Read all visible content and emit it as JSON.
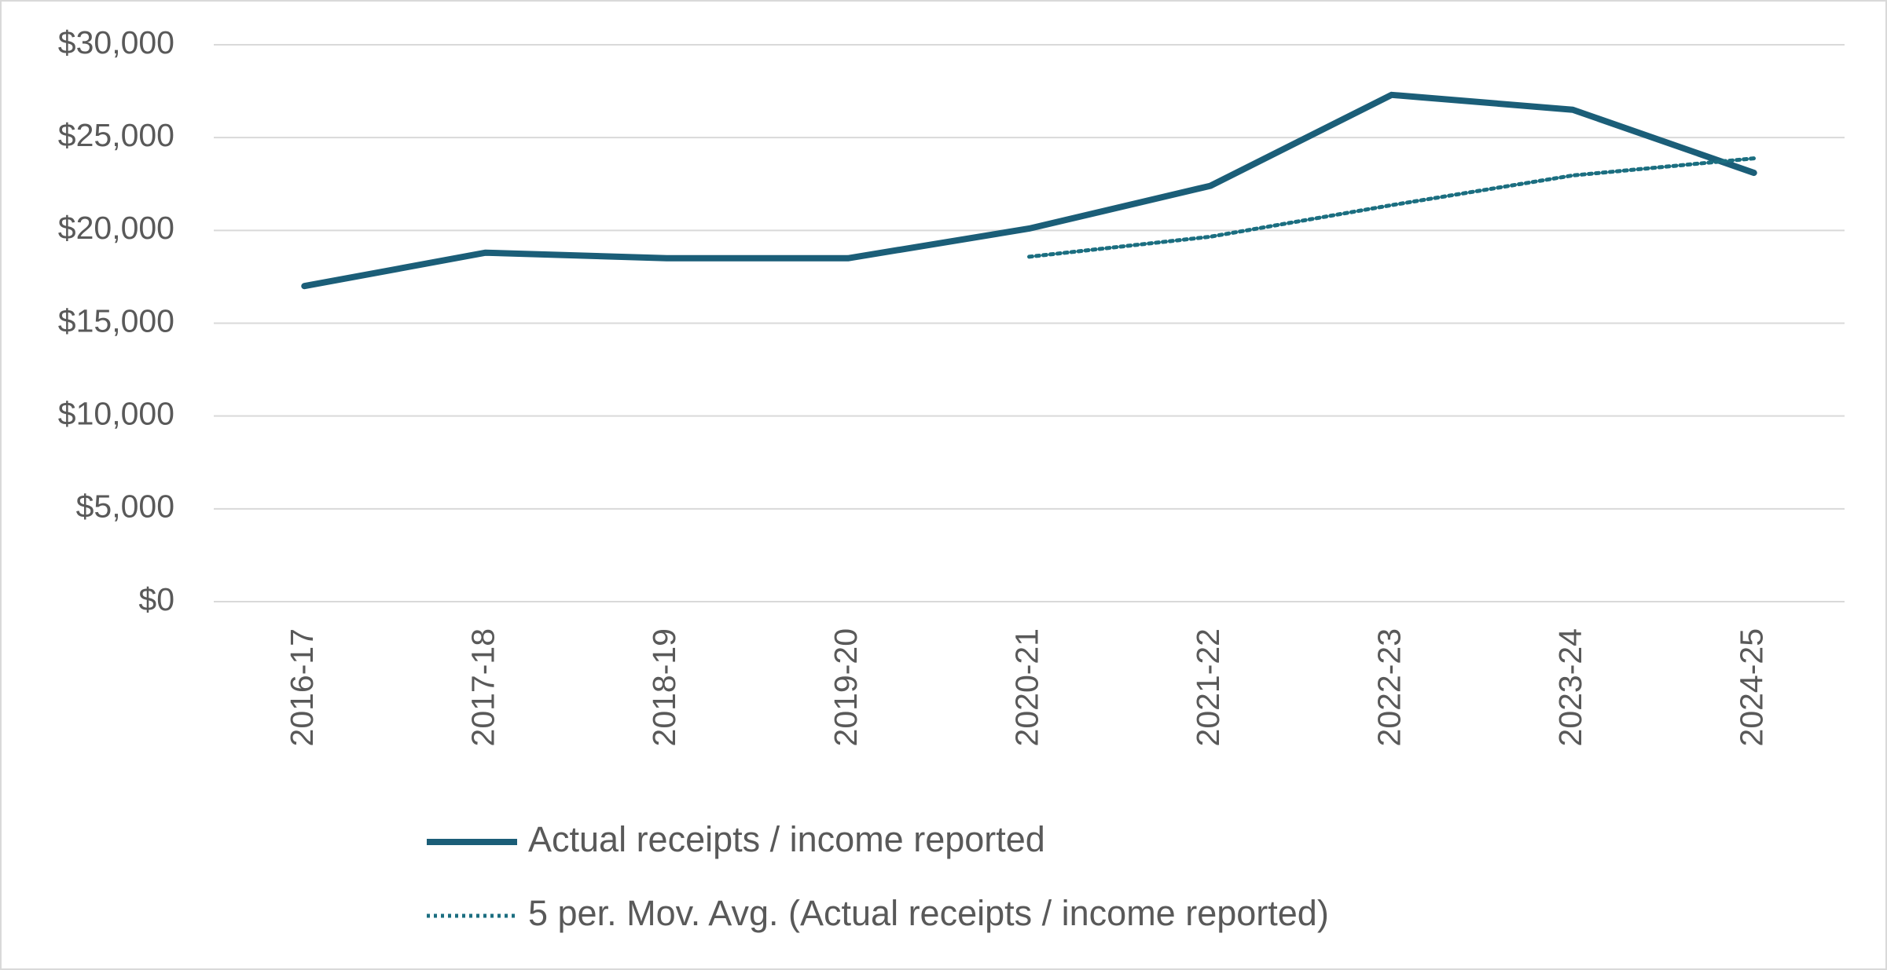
{
  "chart_data": {
    "type": "line",
    "categories": [
      "2016-17",
      "2017-18",
      "2018-19",
      "2019-20",
      "2020-21",
      "2021-22",
      "2022-23",
      "2023-24",
      "2024-25"
    ],
    "series": [
      {
        "name": "Actual receipts / income reported",
        "color": "#1b5e78",
        "style": "solid",
        "values": [
          17000,
          18800,
          18500,
          18500,
          20100,
          22400,
          27300,
          26500,
          23100
        ]
      },
      {
        "name": "5 per. Mov. Avg. (Actual receipts / income reported)",
        "color": "#1b6e80",
        "style": "dotted",
        "values": [
          null,
          null,
          null,
          null,
          18580,
          19660,
          21360,
          22960,
          23880
        ]
      }
    ],
    "ylim": [
      0,
      30000
    ],
    "yticks": [
      {
        "value": 0,
        "label": "$0"
      },
      {
        "value": 5000,
        "label": "$5,000"
      },
      {
        "value": 10000,
        "label": "$10,000"
      },
      {
        "value": 15000,
        "label": "$15,000"
      },
      {
        "value": 20000,
        "label": "$20,000"
      },
      {
        "value": 25000,
        "label": "$25,000"
      },
      {
        "value": 30000,
        "label": "$30,000"
      }
    ],
    "grid": true,
    "legend": "bottom"
  }
}
